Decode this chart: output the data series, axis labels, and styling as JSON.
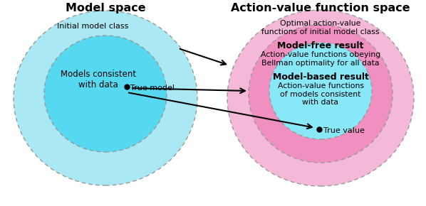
{
  "title_left": "Model space",
  "title_right": "Action-value function space",
  "bg_color": "#ffffff",
  "outer_left_color": "#aae8f4",
  "inner_left_color": "#55d8f0",
  "outer_right_color": "#f4b8d8",
  "middle_right_color": "#f090c0",
  "inner_right_color": "#88e8f8",
  "label_initial_model": "Initial model class",
  "label_models_consistent": "Models consistent\nwith data",
  "label_true_model": "True model",
  "label_optimal_av": "Optimal action-value\nfunctions of initial model class",
  "label_model_free_bold": "Model-free result",
  "label_model_free_desc": "Action-value functions obeying\nBellman optimality for all data",
  "label_model_based_bold": "Model-based result",
  "label_model_based_desc": "Action-value functions\nof models consistent\nwith data",
  "label_true_value": "True value"
}
